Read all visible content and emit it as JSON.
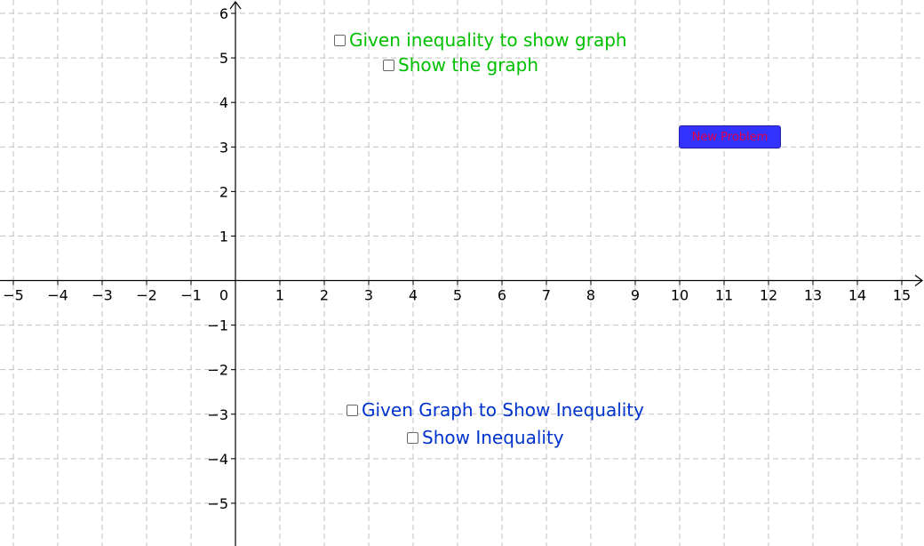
{
  "graphics_view": {
    "x_axis": {
      "min": -5.3,
      "max": 15.5,
      "tick_labels": [
        "−5",
        "−4",
        "−3",
        "−2",
        "−1",
        "1",
        "2",
        "3",
        "4",
        "5",
        "6",
        "7",
        "8",
        "9",
        "10",
        "11",
        "12",
        "13",
        "14",
        "15"
      ],
      "tick_values": [
        -5,
        -4,
        -3,
        -2,
        -1,
        1,
        2,
        3,
        4,
        5,
        6,
        7,
        8,
        9,
        10,
        11,
        12,
        13,
        14,
        15
      ]
    },
    "y_axis": {
      "min": -5.96,
      "max": 6.3,
      "tick_labels": [
        "6",
        "5",
        "4",
        "3",
        "2",
        "1",
        "−1",
        "−2",
        "−3",
        "−4",
        "−5"
      ],
      "tick_values": [
        6,
        5,
        4,
        3,
        2,
        1,
        -1,
        -2,
        -3,
        -4,
        -5
      ]
    },
    "origin_label": "0",
    "grid": true,
    "grid_color": "#c0c0c0",
    "axis_color": "#000000"
  },
  "controls": {
    "checkbox_given_inequality": {
      "label": "Given inequality to show graph",
      "checked": false,
      "color": "#00c000"
    },
    "checkbox_show_graph": {
      "label": "Show the graph",
      "checked": false,
      "color": "#00c000"
    },
    "checkbox_given_graph": {
      "label": "Given Graph to Show Inequality",
      "checked": false,
      "color": "#0033cc"
    },
    "checkbox_show_inequality": {
      "label": "Show Inequality",
      "checked": false,
      "color": "#0033cc"
    },
    "new_problem_button": {
      "label": "New Problem",
      "bg_color": "#3333ff",
      "text_color": "#e0004a"
    }
  }
}
